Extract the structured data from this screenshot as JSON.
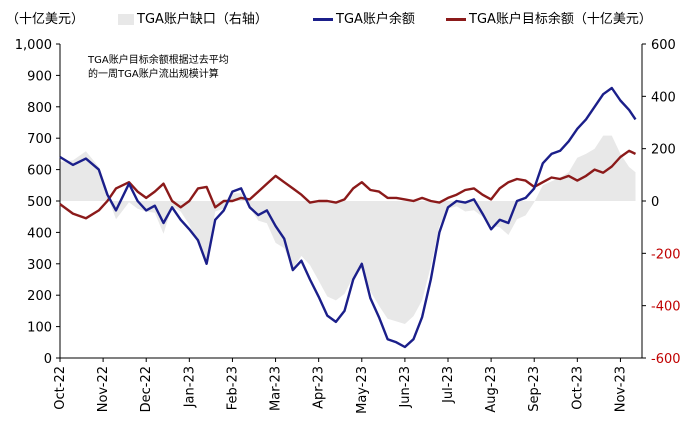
{
  "chart_data": {
    "type": "line",
    "title": "",
    "left_axis_unit": "（十亿美元）",
    "annotation": [
      "TGA账户目标余额根据过去平均",
      "的一周TGA账户流出规模计算"
    ],
    "y_left": {
      "min": 0,
      "max": 1000,
      "ticks": [
        0,
        100,
        200,
        300,
        400,
        500,
        600,
        700,
        800,
        900,
        1000
      ],
      "tick_labels": [
        "0",
        "100",
        "200",
        "300",
        "400",
        "500",
        "600",
        "700",
        "800",
        "900",
        "1,000"
      ]
    },
    "y_right": {
      "min": -600,
      "max": 600,
      "ticks": [
        -600,
        -400,
        -200,
        0,
        200,
        400,
        600
      ],
      "tick_labels": [
        "-600",
        "-400",
        "-200",
        "0",
        "200",
        "400",
        "600"
      ],
      "negative_label_color": "#c00000"
    },
    "x_labels": [
      "Oct-22",
      "Nov-22",
      "Dec-22",
      "Jan-23",
      "Feb-23",
      "Mar-23",
      "Apr-23",
      "May-23",
      "Jun-23",
      "Jul-23",
      "Aug-23",
      "Sep-23",
      "Oct-23",
      "Nov-23"
    ],
    "x_domain": [
      0,
      13.5
    ],
    "grid": false,
    "legend": [
      {
        "label": "TGA账户缺口（右轴）",
        "kind": "area",
        "color": "#e8e8e8"
      },
      {
        "label": "TGA账户余额",
        "kind": "line",
        "color": "#1b1f8a"
      },
      {
        "label": "TGA账户目标余额（十亿美元）",
        "kind": "line",
        "color": "#8b1a1a"
      }
    ],
    "series": [
      {
        "name": "TGA账户余额",
        "axis": "left",
        "color": "#1b1f8a",
        "x": [
          0,
          0.3,
          0.6,
          0.9,
          1.1,
          1.3,
          1.6,
          1.8,
          2.0,
          2.2,
          2.4,
          2.6,
          2.8,
          3.0,
          3.2,
          3.4,
          3.6,
          3.8,
          4.0,
          4.2,
          4.4,
          4.6,
          4.8,
          5.0,
          5.2,
          5.4,
          5.6,
          5.8,
          6.0,
          6.2,
          6.4,
          6.6,
          6.8,
          7.0,
          7.2,
          7.4,
          7.6,
          7.8,
          8.0,
          8.2,
          8.4,
          8.6,
          8.8,
          9.0,
          9.2,
          9.4,
          9.6,
          9.8,
          10.0,
          10.2,
          10.4,
          10.6,
          10.8,
          11.0,
          11.2,
          11.4,
          11.6,
          11.8,
          12.0,
          12.2,
          12.4,
          12.6,
          12.8,
          13.0,
          13.2,
          13.35
        ],
        "y": [
          640,
          615,
          635,
          600,
          520,
          470,
          555,
          500,
          470,
          485,
          430,
          480,
          440,
          410,
          375,
          300,
          440,
          470,
          530,
          540,
          480,
          455,
          470,
          420,
          380,
          280,
          310,
          250,
          195,
          135,
          115,
          150,
          250,
          300,
          190,
          130,
          60,
          50,
          35,
          60,
          130,
          250,
          400,
          480,
          500,
          495,
          505,
          460,
          410,
          440,
          430,
          500,
          510,
          540,
          620,
          650,
          660,
          690,
          730,
          760,
          800,
          840,
          860,
          820,
          790,
          760
        ]
      },
      {
        "name": "TGA账户目标余额",
        "axis": "left",
        "color": "#8b1a1a",
        "x": [
          0,
          0.3,
          0.6,
          0.9,
          1.1,
          1.3,
          1.6,
          1.8,
          2.0,
          2.2,
          2.4,
          2.6,
          2.8,
          3.0,
          3.2,
          3.4,
          3.6,
          3.8,
          4.0,
          4.2,
          4.4,
          4.6,
          4.8,
          5.0,
          5.2,
          5.4,
          5.6,
          5.8,
          6.0,
          6.2,
          6.4,
          6.6,
          6.8,
          7.0,
          7.2,
          7.4,
          7.6,
          7.8,
          8.0,
          8.2,
          8.4,
          8.6,
          8.8,
          9.0,
          9.2,
          9.4,
          9.6,
          9.8,
          10.0,
          10.2,
          10.4,
          10.6,
          10.8,
          11.0,
          11.2,
          11.4,
          11.6,
          11.8,
          12.0,
          12.2,
          12.4,
          12.6,
          12.8,
          13.0,
          13.2,
          13.35
        ],
        "y": [
          490,
          460,
          445,
          470,
          500,
          540,
          560,
          530,
          510,
          530,
          555,
          500,
          480,
          500,
          540,
          545,
          480,
          500,
          500,
          510,
          505,
          530,
          555,
          580,
          560,
          540,
          520,
          495,
          500,
          500,
          495,
          505,
          540,
          560,
          535,
          530,
          510,
          510,
          505,
          500,
          510,
          500,
          495,
          510,
          520,
          535,
          540,
          520,
          505,
          540,
          560,
          570,
          565,
          545,
          560,
          575,
          570,
          580,
          565,
          580,
          600,
          590,
          610,
          640,
          660,
          650
        ]
      },
      {
        "name": "TGA账户缺口（右轴）",
        "axis": "right",
        "color": "#e8e8e8",
        "x": [
          0,
          0.3,
          0.6,
          0.9,
          1.1,
          1.3,
          1.6,
          1.8,
          2.0,
          2.2,
          2.4,
          2.6,
          2.8,
          3.0,
          3.2,
          3.4,
          3.6,
          3.8,
          4.0,
          4.2,
          4.4,
          4.6,
          4.8,
          5.0,
          5.2,
          5.4,
          5.6,
          5.8,
          6.0,
          6.2,
          6.4,
          6.6,
          6.8,
          7.0,
          7.2,
          7.4,
          7.6,
          7.8,
          8.0,
          8.2,
          8.4,
          8.6,
          8.8,
          9.0,
          9.2,
          9.4,
          9.6,
          9.8,
          10.0,
          10.2,
          10.4,
          10.6,
          10.8,
          11.0,
          11.2,
          11.4,
          11.6,
          11.8,
          12.0,
          12.2,
          12.4,
          12.6,
          12.8,
          13.0,
          13.2,
          13.35
        ],
        "y": [
          150,
          155,
          190,
          130,
          20,
          -70,
          -5,
          -30,
          -40,
          -45,
          -125,
          -20,
          -40,
          -90,
          -165,
          -245,
          -40,
          -30,
          30,
          30,
          -25,
          -75,
          -85,
          -160,
          -180,
          -260,
          -210,
          -245,
          -305,
          -365,
          -380,
          -355,
          -290,
          -260,
          -345,
          -400,
          -450,
          -460,
          -470,
          -440,
          -380,
          -250,
          -95,
          -30,
          -20,
          -40,
          -35,
          -60,
          -95,
          -100,
          -130,
          -70,
          -55,
          -5,
          60,
          75,
          90,
          110,
          165,
          180,
          200,
          250,
          250,
          180,
          130,
          110
        ]
      }
    ]
  }
}
